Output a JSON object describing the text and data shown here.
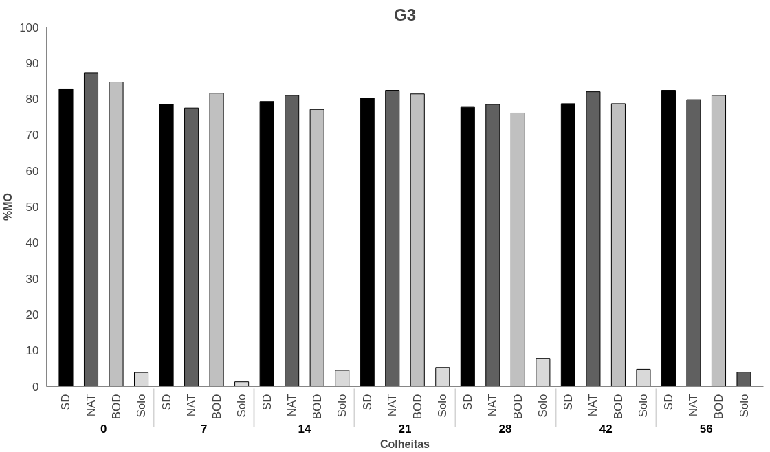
{
  "chart_data": {
    "type": "bar",
    "title": "G3",
    "xlabel": "Colheitas",
    "ylabel": "%MO",
    "categories": [
      "SD",
      "NAT",
      "BOD",
      "Solo",
      "SD",
      "NAT",
      "BOD",
      "Solo",
      "SD",
      "NAT",
      "BOD",
      "Solo",
      "SD",
      "NAT",
      "BOD",
      "Solo",
      "SD",
      "NAT",
      "BOD",
      "Solo",
      "SD",
      "NAT",
      "BOD",
      "Solo",
      "SD",
      "NAT",
      "BOD",
      "Solo"
    ],
    "annotations": [
      "0",
      "7",
      "14",
      "21",
      "28",
      "42",
      "56"
    ],
    "values": [
      82.8,
      87.3,
      84.7,
      3.9,
      78.5,
      77.5,
      81.6,
      1.3,
      79.3,
      81,
      77.1,
      4.5,
      80.2,
      82.4,
      81.4,
      5.3,
      77.7,
      78.5,
      76.1,
      7.8,
      78.7,
      82,
      78.7,
      4.8,
      82.4,
      79.8,
      81,
      4
    ],
    "colors": [
      "#000000",
      "#606060",
      "#c0c0c0",
      "#d9d9d9",
      "#000000",
      "#606060",
      "#c0c0c0",
      "#d9d9d9",
      "#000000",
      "#606060",
      "#c0c0c0",
      "#d9d9d9",
      "#000000",
      "#606060",
      "#c0c0c0",
      "#d9d9d9",
      "#000000",
      "#606060",
      "#c0c0c0",
      "#d9d9d9",
      "#000000",
      "#606060",
      "#c0c0c0",
      "#d9d9d9",
      "#000000",
      "#606060",
      "#c0c0c0",
      "#606060"
    ],
    "ylim": [
      0,
      100
    ],
    "yticks": [
      0,
      10,
      20,
      30,
      40,
      50,
      60,
      70,
      80,
      90,
      100
    ],
    "grid": false
  }
}
